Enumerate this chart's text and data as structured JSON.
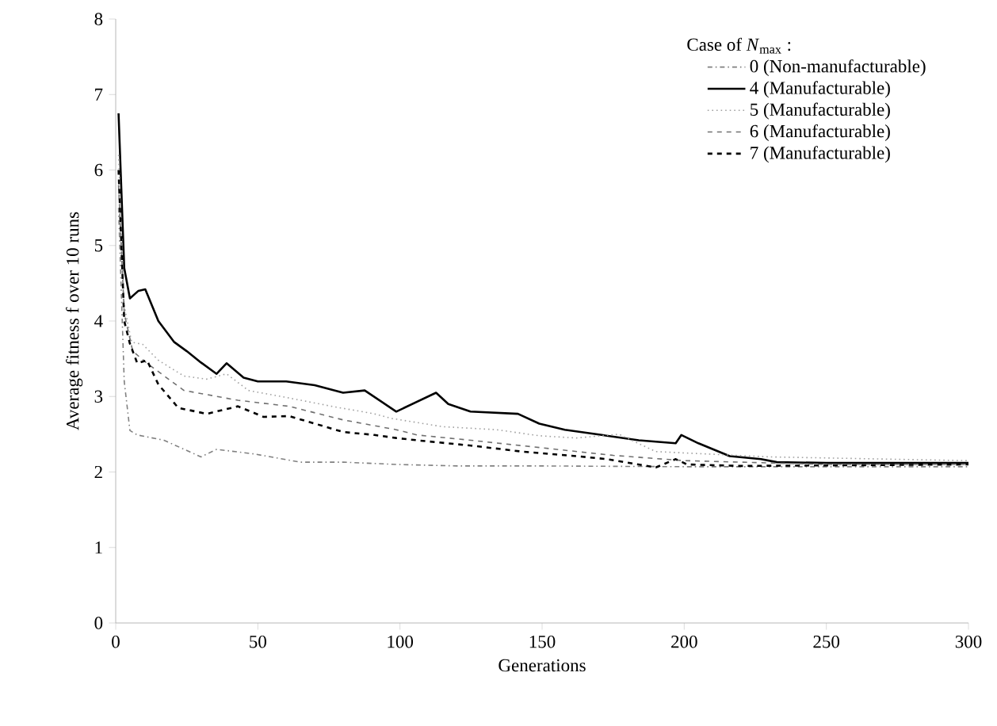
{
  "chart_data": {
    "type": "line",
    "xlabel": "Generations",
    "ylabel": "Average fitness f over 10 runs",
    "legend_title": "Case of *N*$_{max}$ :",
    "xlim": [
      0,
      300
    ],
    "ylim": [
      0,
      8
    ],
    "xticks": [
      0,
      50,
      100,
      150,
      200,
      250,
      300
    ],
    "yticks": [
      0,
      1,
      2,
      3,
      4,
      5,
      6,
      7,
      8
    ],
    "grid": false,
    "legend": "top right",
    "series": [
      {
        "name": "0 (Non-manufacturable)",
        "color": "#808080",
        "line_style": "dashdot",
        "x": [
          1,
          3,
          5,
          7.6,
          17,
          30,
          35.5,
          48.5,
          65,
          80,
          98.7,
          120,
          150,
          200,
          250,
          300
        ],
        "values": [
          5.5,
          3.2,
          2.55,
          2.49,
          2.42,
          2.2,
          2.3,
          2.24,
          2.13,
          2.13,
          2.1,
          2.08,
          2.08,
          2.07,
          2.07,
          2.07
        ]
      },
      {
        "name": "4 (Manufacturable)",
        "color": "#000000",
        "line_style": "solid",
        "x": [
          1,
          3,
          5,
          8,
          10.4,
          15,
          20.6,
          25,
          30,
          35.5,
          39,
          45,
          50,
          60,
          70,
          80,
          87.6,
          98.7,
          112.7,
          117,
          124.8,
          141.5,
          149,
          158,
          171,
          184,
          197,
          199,
          205,
          216,
          227,
          232.6,
          250,
          300
        ],
        "values": [
          6.75,
          4.7,
          4.3,
          4.4,
          4.42,
          4.0,
          3.72,
          3.6,
          3.45,
          3.3,
          3.44,
          3.25,
          3.2,
          3.2,
          3.15,
          3.05,
          3.08,
          2.8,
          3.05,
          2.9,
          2.8,
          2.77,
          2.64,
          2.56,
          2.49,
          2.42,
          2.38,
          2.49,
          2.38,
          2.21,
          2.17,
          2.13,
          2.12,
          2.12
        ]
      },
      {
        "name": "5 (Manufacturable)",
        "color": "#a0a0a0",
        "line_style": "dotted",
        "x": [
          1,
          3,
          5.6,
          9.5,
          15,
          24,
          32,
          39,
          46.7,
          61,
          76,
          91,
          97,
          115,
          134,
          149,
          162,
          177,
          190,
          230,
          300
        ],
        "values": [
          6.2,
          4.2,
          3.72,
          3.69,
          3.48,
          3.27,
          3.23,
          3.3,
          3.08,
          2.98,
          2.87,
          2.77,
          2.71,
          2.6,
          2.56,
          2.48,
          2.45,
          2.5,
          2.27,
          2.2,
          2.15
        ]
      },
      {
        "name": "6 (Manufacturable)",
        "color": "#707070",
        "line_style": "dashed",
        "x": [
          1,
          3,
          6,
          11,
          24,
          43,
          61,
          80,
          98.7,
          106,
          125,
          150,
          175,
          200,
          250,
          300
        ],
        "values": [
          5.8,
          4.1,
          3.6,
          3.44,
          3.08,
          2.95,
          2.87,
          2.69,
          2.56,
          2.49,
          2.42,
          2.32,
          2.22,
          2.15,
          2.1,
          2.1
        ]
      },
      {
        "name": "7 (Manufacturable)",
        "color": "#000000",
        "line_style": "dashed",
        "x": [
          1,
          3,
          5,
          7.6,
          11,
          15,
          22,
          32,
          43,
          52,
          61,
          71,
          80,
          91,
          98.7,
          106,
          125,
          143,
          162,
          173,
          190,
          197,
          201,
          220,
          300
        ],
        "values": [
          6.0,
          4.0,
          3.7,
          3.44,
          3.48,
          3.16,
          2.85,
          2.77,
          2.87,
          2.73,
          2.74,
          2.63,
          2.53,
          2.49,
          2.45,
          2.42,
          2.35,
          2.27,
          2.21,
          2.17,
          2.06,
          2.17,
          2.1,
          2.08,
          2.1
        ]
      }
    ]
  }
}
